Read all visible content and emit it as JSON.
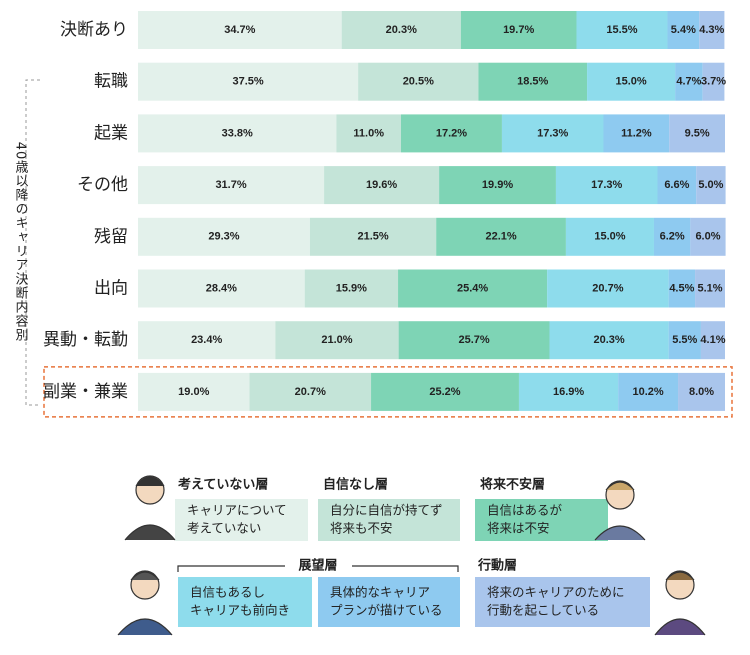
{
  "chart_data": {
    "type": "stacked-barh",
    "axis_label": "40歳以降のキャリア決断内容別",
    "categories": [
      "決断あり",
      "転職",
      "起業",
      "その他",
      "残留",
      "出向",
      "異動・転勤",
      "副業・兼業"
    ],
    "highlight_index": 7,
    "xlim": [
      0,
      100
    ],
    "legend_group": "展望層",
    "series": [
      {
        "name": "考えていない層",
        "description": [
          "キャリアについて",
          "考えていない"
        ],
        "color": "#e3f1eb",
        "values": [
          34.7,
          37.5,
          33.8,
          31.7,
          29.3,
          28.4,
          23.4,
          19.0
        ],
        "value_labels": [
          "34.7%",
          "37.5%",
          "33.8%",
          "31.7%",
          "29.3%",
          "28.4%",
          "23.4%",
          "19.0%"
        ]
      },
      {
        "name": "自信なし層",
        "description": [
          "自分に自信が持てず",
          "将来も不安"
        ],
        "color": "#c4e4d8",
        "values": [
          20.3,
          20.5,
          11.0,
          19.6,
          21.5,
          15.9,
          21.0,
          20.7
        ],
        "value_labels": [
          "20.3%",
          "20.5%",
          "11.0%",
          "19.6%",
          "21.5%",
          "15.9%",
          "21.0%",
          "20.7%"
        ]
      },
      {
        "name": "将来不安層",
        "description": [
          "自信はあるが",
          "将来は不安"
        ],
        "color": "#7ed4b5",
        "values": [
          19.7,
          18.5,
          17.2,
          19.9,
          22.1,
          25.4,
          25.7,
          25.2
        ],
        "value_labels": [
          "19.7%",
          "18.5%",
          "17.2%",
          "19.9%",
          "22.1%",
          "25.4%",
          "25.7%",
          "25.2%"
        ]
      },
      {
        "description": [
          "自信もあるし",
          "キャリアも前向き"
        ],
        "group": true,
        "color": "#8edcec",
        "values": [
          15.5,
          15.0,
          17.3,
          17.3,
          15.0,
          20.7,
          20.3,
          16.9
        ],
        "value_labels": [
          "15.5%",
          "15.0%",
          "17.3%",
          "17.3%",
          "15.0%",
          "20.7%",
          "20.3%",
          "16.9%"
        ]
      },
      {
        "description": [
          "具体的なキャリア",
          "プランが描けている"
        ],
        "group": true,
        "color": "#8ecaf0",
        "values": [
          5.4,
          4.7,
          11.2,
          6.6,
          6.2,
          4.5,
          5.5,
          10.2
        ],
        "value_labels": [
          "5.4%",
          "4.7%",
          "11.2%",
          "6.6%",
          "6.2%",
          "4.5%",
          "5.5%",
          "10.2%"
        ]
      },
      {
        "name": "行動層",
        "description": [
          "将来のキャリアのために",
          "行動を起こしている"
        ],
        "color": "#a9c5ec",
        "values": [
          4.3,
          3.7,
          9.5,
          5.0,
          6.0,
          5.1,
          4.1,
          8.0
        ],
        "value_labels": [
          "4.3%",
          "3.7%",
          "9.5%",
          "5.0%",
          "6.0%",
          "5.1%",
          "4.1%",
          "8.0%"
        ]
      }
    ]
  }
}
